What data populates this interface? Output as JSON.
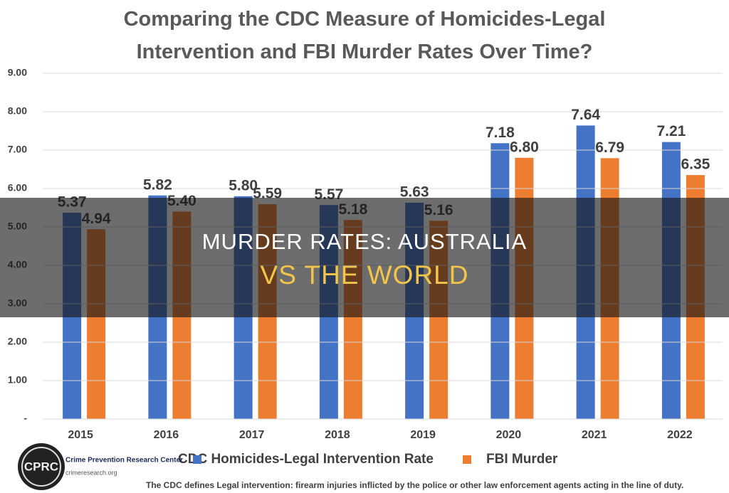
{
  "chart_data": {
    "type": "bar",
    "title": "Comparing the CDC Measure of Homicides-Legal Intervention and FBI Murder Rates Over Time?",
    "categories": [
      "2015",
      "2016",
      "2017",
      "2018",
      "2019",
      "2020",
      "2021",
      "2022"
    ],
    "series": [
      {
        "name": "CDC Homicides-Legal Intervention Rate",
        "color": "#4472c4",
        "values": [
          5.37,
          5.82,
          5.8,
          5.57,
          5.63,
          7.18,
          7.64,
          7.21
        ],
        "value_labels": [
          "5.37",
          "5.82",
          "5.80",
          "5.57",
          "5.63",
          "7.18",
          "7.64",
          "7.21"
        ]
      },
      {
        "name": "FBI Murder",
        "color": "#ed7d31",
        "values": [
          4.94,
          5.4,
          5.59,
          5.18,
          5.16,
          6.8,
          6.79,
          6.35
        ],
        "value_labels": [
          "4.94",
          "5.40",
          "5.59",
          "5.18",
          "5.16",
          "6.80",
          "6.79",
          "6.35"
        ]
      }
    ],
    "ylim": [
      0,
      9
    ],
    "yticks": [
      {
        "value": 0,
        "label": "-"
      },
      {
        "value": 1,
        "label": "1.00"
      },
      {
        "value": 2,
        "label": "2.00"
      },
      {
        "value": 3,
        "label": "3.00"
      },
      {
        "value": 4,
        "label": "4.00"
      },
      {
        "value": 5,
        "label": "5.00"
      },
      {
        "value": 6,
        "label": "6.00"
      },
      {
        "value": 7,
        "label": "7.00"
      },
      {
        "value": 8,
        "label": "8.00"
      },
      {
        "value": 9,
        "label": "9.00"
      }
    ],
    "grid": true,
    "legend": "bottom",
    "footnote": "The CDC defines Legal intervention: firearm injuries inflicted by the police or other law enforcement agents acting in the line of duty."
  },
  "logo": {
    "mark": "CPRC",
    "name": "Crime Prevention Research Center",
    "url": "crimeresearch.org"
  },
  "overlay": {
    "line1": "MURDER RATES: AUSTRALIA",
    "line2": "VS THE WORLD"
  }
}
